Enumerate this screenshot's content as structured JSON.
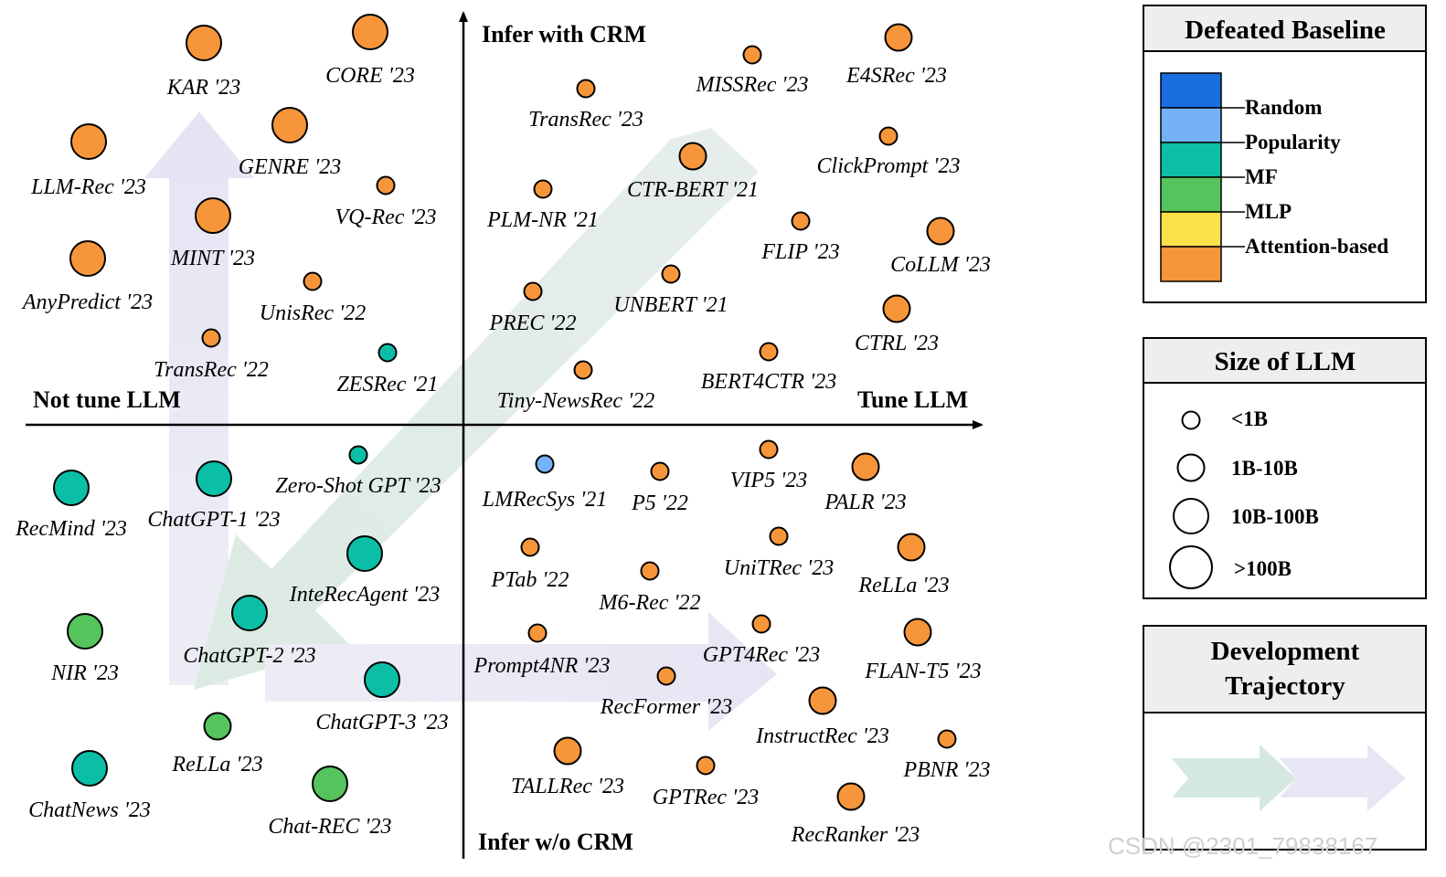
{
  "axes": {
    "top": "Infer with CRM",
    "bottom": "Infer w/o CRM",
    "left": "Not tune LLM",
    "right": "Tune LLM"
  },
  "models": [
    {
      "name": "KAR '23",
      "size": "10B-100B",
      "color": "attention"
    },
    {
      "name": "CORE '23",
      "size": "10B-100B",
      "color": "attention"
    },
    {
      "name": "LLM-Rec '23",
      "size": "10B-100B",
      "color": "attention"
    },
    {
      "name": "GENRE '23",
      "size": "10B-100B",
      "color": "attention"
    },
    {
      "name": "VQ-Rec '23",
      "size": "<1B",
      "color": "attention"
    },
    {
      "name": "MINT '23",
      "size": "10B-100B",
      "color": "attention"
    },
    {
      "name": "AnyPredict '23",
      "size": "10B-100B",
      "color": "attention"
    },
    {
      "name": "UnisRec '22",
      "size": "<1B",
      "color": "attention"
    },
    {
      "name": "TransRec '22",
      "size": "<1B",
      "color": "attention"
    },
    {
      "name": "ZESRec '21",
      "size": "<1B",
      "color": "mf"
    },
    {
      "name": "TransRec '23",
      "size": "<1B",
      "color": "attention"
    },
    {
      "name": "MISSRec '23",
      "size": "<1B",
      "color": "attention"
    },
    {
      "name": "E4SRec '23",
      "size": "1B-10B",
      "color": "attention"
    },
    {
      "name": "ClickPrompt '23",
      "size": "<1B",
      "color": "attention"
    },
    {
      "name": "CTR-BERT '21",
      "size": "1B-10B",
      "color": "attention"
    },
    {
      "name": "PLM-NR '21",
      "size": "<1B",
      "color": "attention"
    },
    {
      "name": "FLIP '23",
      "size": "<1B",
      "color": "attention"
    },
    {
      "name": "CoLLM '23",
      "size": "1B-10B",
      "color": "attention"
    },
    {
      "name": "UNBERT '21",
      "size": "<1B",
      "color": "attention"
    },
    {
      "name": "PREC '22",
      "size": "<1B",
      "color": "attention"
    },
    {
      "name": "CTRL '23",
      "size": "1B-10B",
      "color": "attention"
    },
    {
      "name": "BERT4CTR '23",
      "size": "<1B",
      "color": "attention"
    },
    {
      "name": "Tiny-NewsRec '22",
      "size": "<1B",
      "color": "attention"
    },
    {
      "name": "RecMind '23",
      "size": "10B-100B",
      "color": "mf"
    },
    {
      "name": "ChatGPT-1 '23",
      "size": "10B-100B",
      "color": "mf"
    },
    {
      "name": "Zero-Shot GPT '23",
      "size": "<1B",
      "color": "mf"
    },
    {
      "name": "InteRecAgent '23",
      "size": "10B-100B",
      "color": "mf"
    },
    {
      "name": "ChatGPT-2 '23",
      "size": "10B-100B",
      "color": "mf"
    },
    {
      "name": "NIR '23",
      "size": "10B-100B",
      "color": "mlp"
    },
    {
      "name": "ChatGPT-3 '23",
      "size": "10B-100B",
      "color": "mf"
    },
    {
      "name": "ReLLa '23",
      "size": "1B-10B",
      "color": "mlp"
    },
    {
      "name": "ChatNews '23",
      "size": "10B-100B",
      "color": "mf"
    },
    {
      "name": "Chat-REC '23",
      "size": "10B-100B",
      "color": "mlp"
    },
    {
      "name": "LMRecSys '21",
      "size": "<1B",
      "color": "popularity"
    },
    {
      "name": "P5 '22",
      "size": "<1B",
      "color": "attention"
    },
    {
      "name": "VIP5 '23",
      "size": "<1B",
      "color": "attention"
    },
    {
      "name": "PALR '23",
      "size": "1B-10B",
      "color": "attention"
    },
    {
      "name": "PTab '22",
      "size": "<1B",
      "color": "attention"
    },
    {
      "name": "UniTRec '23",
      "size": "<1B",
      "color": "attention"
    },
    {
      "name": "ReLLa '23",
      "size": "1B-10B",
      "color": "attention"
    },
    {
      "name": "M6-Rec '22",
      "size": "<1B",
      "color": "attention"
    },
    {
      "name": "Prompt4NR '23",
      "size": "<1B",
      "color": "attention"
    },
    {
      "name": "GPT4Rec '23",
      "size": "<1B",
      "color": "attention"
    },
    {
      "name": "FLAN-T5 '23",
      "size": "1B-10B",
      "color": "attention"
    },
    {
      "name": "RecFormer '23",
      "size": "<1B",
      "color": "attention"
    },
    {
      "name": "InstructRec '23",
      "size": "1B-10B",
      "color": "attention"
    },
    {
      "name": "PBNR '23",
      "size": "<1B",
      "color": "attention"
    },
    {
      "name": "TALLRec '23",
      "size": "1B-10B",
      "color": "attention"
    },
    {
      "name": "GPTRec '23",
      "size": "<1B",
      "color": "attention"
    },
    {
      "name": "RecRanker '23",
      "size": "1B-10B",
      "color": "attention"
    }
  ],
  "legend": {
    "defeated": {
      "title": "Defeated Baseline",
      "items": [
        {
          "label": "Random",
          "key": "random",
          "color": "#1a6fe0"
        },
        {
          "label": "Popularity",
          "key": "popularity",
          "color": "#74b1f7"
        },
        {
          "label": "MF",
          "key": "mf",
          "color": "#0bbfa7"
        },
        {
          "label": "MLP",
          "key": "mlp",
          "color": "#55c45d"
        },
        {
          "label": "Attention-based",
          "key": "attention",
          "color": "#f9e14a"
        }
      ],
      "extra_color": "#f7953a"
    },
    "size": {
      "title": "Size of LLM",
      "items": [
        "<1B",
        "1B-10B",
        "10B-100B",
        ">100B"
      ]
    },
    "trajectory": {
      "title_line1": "Development",
      "title_line2": "Trajectory"
    }
  },
  "colors": {
    "attention": "#f7953a",
    "mf": "#0bbfa7",
    "mlp": "#55c45d",
    "popularity": "#74b1f7",
    "random": "#1a6fe0"
  },
  "watermark": "CSDN @2301_79838167"
}
